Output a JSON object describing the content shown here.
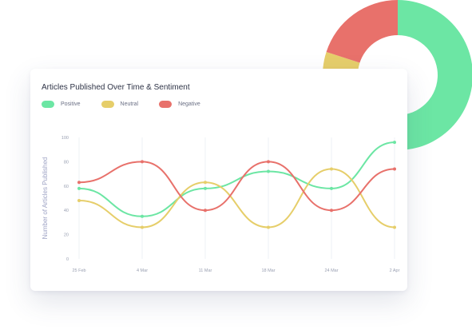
{
  "chart_data": {
    "type": "line",
    "title": "Articles Published Over Time & Sentiment",
    "ylabel": "Number of Articles Published",
    "xlabel": "",
    "categories": [
      "25 Feb",
      "4 Mar",
      "11 Mar",
      "18 Mar",
      "24 Mar",
      "2 Apr"
    ],
    "yticks": [
      "0",
      "20",
      "40",
      "60",
      "80",
      "100"
    ],
    "ylim": [
      0,
      100
    ],
    "legend_position": "top-left",
    "grid": "vertical",
    "series": [
      {
        "name": "Positive",
        "color": "#6ce6a4",
        "values": [
          58,
          35,
          58,
          72,
          58,
          96
        ]
      },
      {
        "name": "Neutral",
        "color": "#e6ce6a",
        "values": [
          48,
          26,
          63,
          26,
          74,
          26
        ]
      },
      {
        "name": "Negative",
        "color": "#e8716b",
        "values": [
          63,
          80,
          40,
          80,
          40,
          74
        ]
      }
    ]
  },
  "donut": {
    "type": "pie",
    "slices": [
      {
        "color": "#6ce6a4",
        "fraction": 0.52
      },
      {
        "color": "#e6ce6a",
        "fraction": 0.28
      },
      {
        "color": "#e8716b",
        "fraction": 0.2
      }
    ]
  }
}
